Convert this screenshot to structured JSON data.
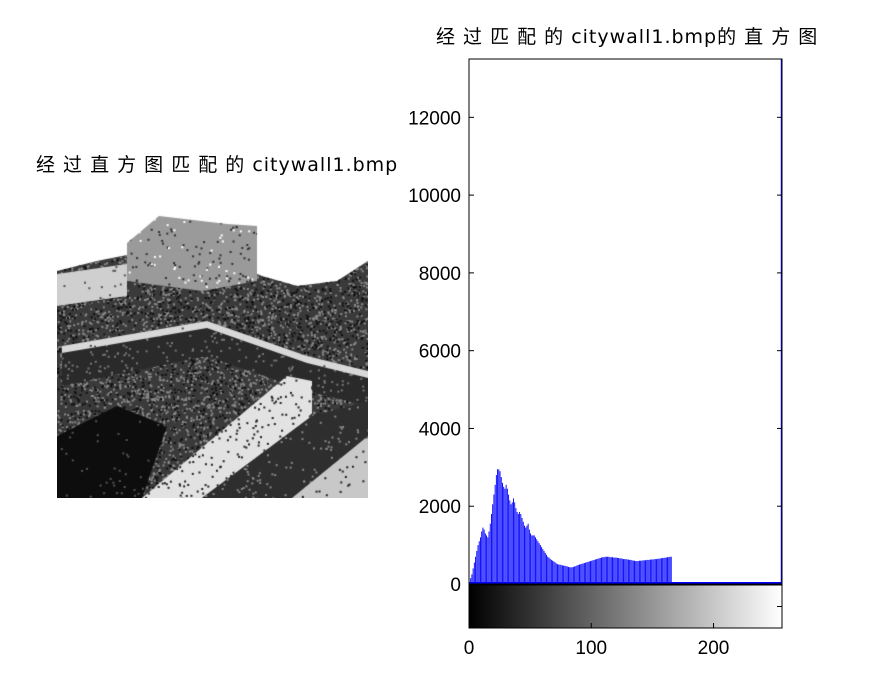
{
  "left_panel": {
    "title": "经 过 直 方 图 匹 配 的 citywall1.bmp"
  },
  "chart_data": {
    "type": "bar",
    "title": "经 过 匹 配 的 citywall1.bmp的 直 方 图",
    "xlabel": "",
    "ylabel": "",
    "xlim": [
      0,
      255
    ],
    "ylim": [
      0,
      13500
    ],
    "yticks": [
      0,
      2000,
      4000,
      6000,
      8000,
      10000,
      12000
    ],
    "xticks": [
      0,
      100,
      200
    ],
    "grid": false,
    "legend": "none",
    "colorbar": "grayscale 0-255 below x-axis",
    "bar_color": "#0000ff",
    "bins": [
      0,
      1,
      2,
      3,
      4,
      5,
      6,
      7,
      8,
      9,
      10,
      11,
      12,
      13,
      14,
      15,
      16,
      17,
      18,
      19,
      20,
      21,
      22,
      23,
      24,
      25,
      26,
      27,
      28,
      29,
      30,
      31,
      32,
      33,
      34,
      35,
      36,
      37,
      38,
      39,
      40,
      41,
      42,
      43,
      44,
      45,
      46,
      47,
      48,
      49,
      50,
      51,
      52,
      53,
      54,
      55,
      56,
      57,
      58,
      59,
      60,
      61,
      62,
      63,
      64,
      65,
      66,
      67,
      68,
      69,
      70,
      71,
      72,
      73,
      74,
      75,
      76,
      77,
      78,
      79,
      80,
      81,
      82,
      83,
      84,
      85,
      86,
      87,
      88,
      89,
      90,
      91,
      92,
      93,
      94,
      95,
      96,
      97,
      98,
      99,
      100,
      101,
      102,
      103,
      104,
      105,
      106,
      107,
      108,
      109,
      110,
      111,
      112,
      113,
      114,
      115,
      116,
      117,
      118,
      119,
      120,
      121,
      122,
      123,
      124,
      125,
      126,
      127,
      128,
      129,
      130,
      131,
      132,
      133,
      134,
      135,
      136,
      137,
      138,
      139,
      140,
      141,
      142,
      143,
      144,
      145,
      146,
      147,
      148,
      149,
      150,
      151,
      152,
      153,
      154,
      155,
      156,
      157,
      158,
      159,
      160,
      161,
      162,
      163,
      164,
      165,
      255
    ],
    "values": [
      50,
      150,
      250,
      400,
      550,
      700,
      850,
      1000,
      1100,
      1200,
      1350,
      1450,
      1400,
      1300,
      1250,
      1200,
      1350,
      1550,
      1800,
      2050,
      2300,
      2550,
      2800,
      2950,
      2950,
      2900,
      2750,
      2600,
      2500,
      2450,
      2550,
      2450,
      2300,
      2150,
      2050,
      2100,
      2200,
      2100,
      1950,
      1850,
      1800,
      1850,
      1800,
      1700,
      1600,
      1500,
      1450,
      1500,
      1550,
      1400,
      1300,
      1250,
      1250,
      1250,
      1200,
      1150,
      1100,
      1050,
      1000,
      950,
      900,
      850,
      800,
      750,
      700,
      680,
      650,
      620,
      600,
      580,
      560,
      530,
      510,
      500,
      500,
      490,
      480,
      470,
      470,
      460,
      450,
      440,
      430,
      430,
      430,
      440,
      450,
      460,
      480,
      490,
      500,
      510,
      520,
      530,
      540,
      550,
      560,
      570,
      580,
      590,
      600,
      610,
      620,
      630,
      640,
      650,
      660,
      670,
      680,
      690,
      690,
      700,
      700,
      700,
      700,
      690,
      690,
      690,
      680,
      680,
      680,
      670,
      670,
      660,
      660,
      650,
      640,
      640,
      640,
      630,
      630,
      620,
      620,
      610,
      600,
      600,
      590,
      590,
      590,
      600,
      600,
      600,
      610,
      610,
      610,
      620,
      620,
      620,
      630,
      630,
      630,
      640,
      640,
      640,
      650,
      650,
      660,
      660,
      670,
      670,
      680,
      680,
      690,
      690,
      700,
      700,
      14000
    ]
  }
}
